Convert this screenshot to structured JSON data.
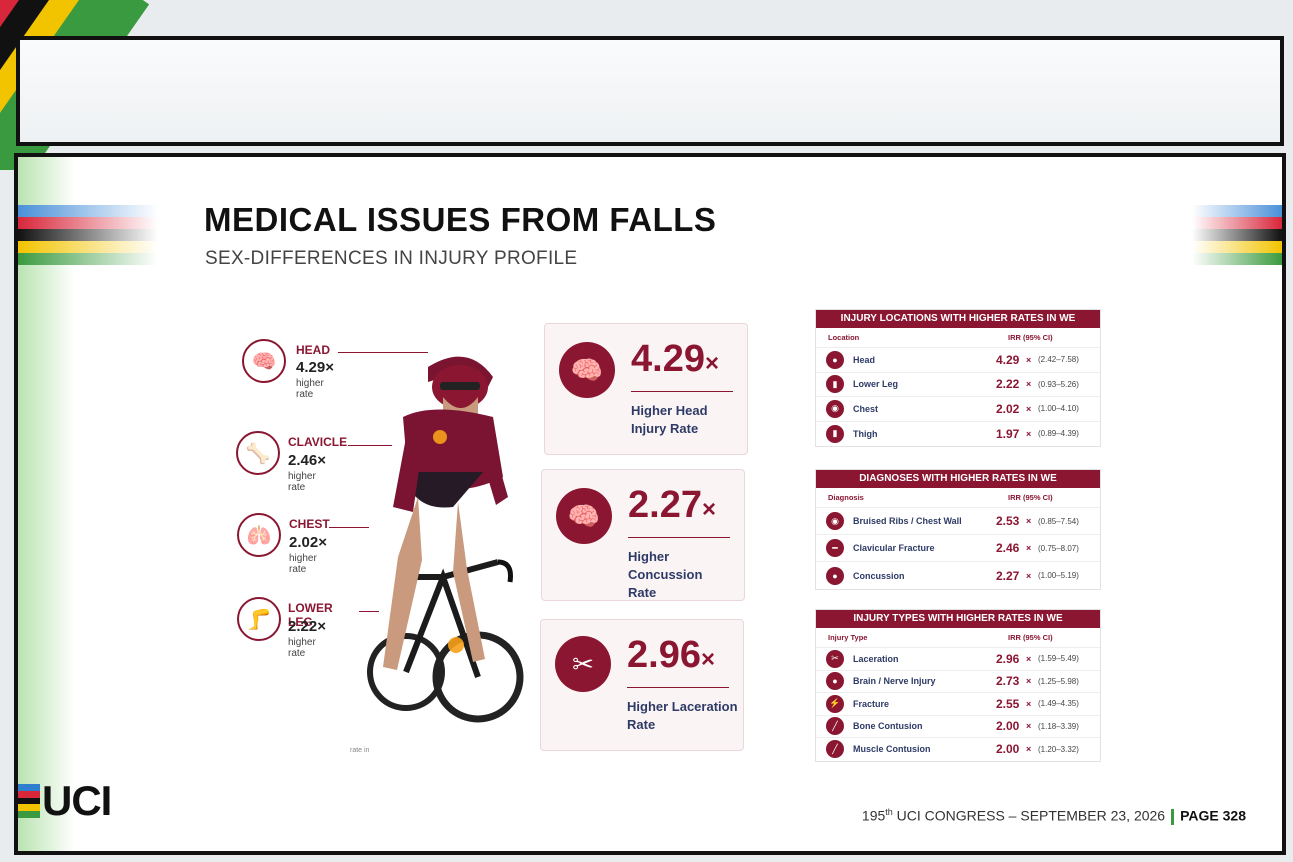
{
  "slide": {
    "title": "MEDICAL ISSUES FROM FALLS",
    "subtitle": "SEX-DIFFERENCES IN INJURY PROFILE",
    "cut_text": "rate in"
  },
  "callouts": [
    {
      "label": "HEAD",
      "value": "4.29×",
      "sub": "higher rate",
      "icon": "brain-icon"
    },
    {
      "label": "CLAVICLE",
      "value": "2.46×",
      "sub": "higher rate",
      "icon": "bone-icon"
    },
    {
      "label": "CHEST",
      "value": "2.02×",
      "sub": "higher rate",
      "icon": "lungs-icon"
    },
    {
      "label": "LOWER LEG",
      "value": "2.22×",
      "sub": "higher rate",
      "icon": "leg-icon"
    }
  ],
  "stat_cards": [
    {
      "value": "4.29",
      "x": "×",
      "desc1": "Higher Head",
      "desc2": "Injury Rate",
      "icon": "brain-head-icon"
    },
    {
      "value": "2.27",
      "x": "×",
      "desc1": "Higher Concussion",
      "desc2": "Rate",
      "icon": "concussion-head-icon"
    },
    {
      "value": "2.96",
      "x": "×",
      "desc1": "Higher Laceration",
      "desc2": "Rate",
      "icon": "scissors-icon"
    }
  ],
  "tables": [
    {
      "header": "INJURY LOCATIONS WITH HIGHER RATES IN WE",
      "col1": "Location",
      "col2": "IRR (95% CI)",
      "rows": [
        {
          "name": "Head",
          "irr": "4.29",
          "ci": "(2.42–7.58)",
          "icon": "head-icon"
        },
        {
          "name": "Lower Leg",
          "irr": "2.22",
          "ci": "(0.93–5.26)",
          "icon": "leg-icon"
        },
        {
          "name": "Chest",
          "irr": "2.02",
          "ci": "(1.00–4.10)",
          "icon": "lungs-icon"
        },
        {
          "name": "Thigh",
          "irr": "1.97",
          "ci": "(0.89–4.39)",
          "icon": "thigh-icon"
        }
      ]
    },
    {
      "header": "DIAGNOSES WITH HIGHER RATES IN WE",
      "col1": "Diagnosis",
      "col2": "IRR (95% CI)",
      "rows": [
        {
          "name": "Bruised Ribs / Chest Wall",
          "irr": "2.53",
          "ci": "(0.85–7.54)",
          "icon": "ribs-icon"
        },
        {
          "name": "Clavicular Fracture",
          "irr": "2.46",
          "ci": "(0.75–8.07)",
          "icon": "bone-icon"
        },
        {
          "name": "Concussion",
          "irr": "2.27",
          "ci": "(1.00–5.19)",
          "icon": "head-icon"
        }
      ]
    },
    {
      "header": "INJURY TYPES WITH HIGHER RATES IN WE",
      "col1": "Injury Type",
      "col2": "IRR (95% CI)",
      "rows": [
        {
          "name": "Laceration",
          "irr": "2.96",
          "ci": "(1.59–5.49)",
          "icon": "scissors-icon"
        },
        {
          "name": "Brain / Nerve Injury",
          "irr": "2.73",
          "ci": "(1.25–5.98)",
          "icon": "brain-icon"
        },
        {
          "name": "Fracture",
          "irr": "2.55",
          "ci": "(1.49–4.35)",
          "icon": "fracture-icon"
        },
        {
          "name": "Bone Contusion",
          "irr": "2.00",
          "ci": "(1.18–3.39)",
          "icon": "bone-contusion-icon"
        },
        {
          "name": "Muscle Contusion",
          "irr": "2.00",
          "ci": "(1.20–3.32)",
          "icon": "muscle-icon"
        }
      ]
    }
  ],
  "times": "×",
  "logo": {
    "text": "UCI"
  },
  "footer": {
    "num": "195",
    "sup": "th",
    "rest": " UCI CONGRESS – SEPTEMBER 23, 2026",
    "page": "PAGE 328"
  },
  "colors": {
    "accent": "#8a1631",
    "navy": "#2e3b66",
    "uci_green": "#3a9a3f"
  }
}
